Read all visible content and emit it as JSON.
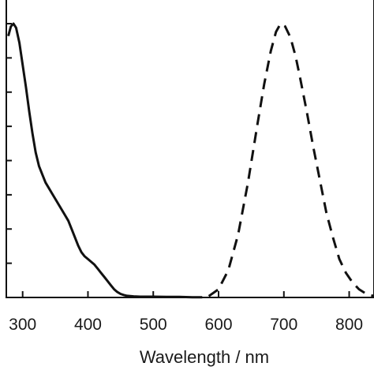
{
  "chart_data": {
    "type": "line",
    "title": "",
    "xlabel": "Wavelength / nm",
    "ylabel": "",
    "xlim": [
      275,
      838
    ],
    "ylim": [
      0,
      1
    ],
    "x_ticks": [
      300,
      400,
      500,
      600,
      700,
      800
    ],
    "x_tick_labels": [
      "300",
      "400",
      "500",
      "600",
      "700",
      "800"
    ],
    "y_ticks": [
      0,
      0.125,
      0.25,
      0.375,
      0.5,
      0.625,
      0.75,
      0.875,
      1.0
    ],
    "y_tick_labels_visible": false,
    "grid": false,
    "legend": "none",
    "series": [
      {
        "style": "solid",
        "color": "#111111",
        "x": [
          278,
          282,
          286,
          290,
          295,
          300,
          305,
          310,
          315,
          320,
          325,
          330,
          335,
          340,
          345,
          350,
          355,
          360,
          365,
          370,
          375,
          380,
          385,
          390,
          395,
          400,
          405,
          410,
          415,
          420,
          425,
          430,
          435,
          440,
          445,
          450,
          455,
          460,
          470,
          480,
          500,
          520,
          540,
          560,
          575
        ],
        "y": [
          0.955,
          0.99,
          1.0,
          0.985,
          0.93,
          0.85,
          0.77,
          0.68,
          0.6,
          0.53,
          0.48,
          0.45,
          0.42,
          0.4,
          0.38,
          0.36,
          0.34,
          0.32,
          0.3,
          0.28,
          0.25,
          0.22,
          0.19,
          0.165,
          0.15,
          0.14,
          0.13,
          0.12,
          0.105,
          0.09,
          0.075,
          0.06,
          0.045,
          0.03,
          0.02,
          0.013,
          0.009,
          0.006,
          0.004,
          0.003,
          0.003,
          0.002,
          0.002,
          0.001,
          0.001
        ]
      },
      {
        "style": "dashed",
        "color": "#111111",
        "x": [
          585,
          600,
          615,
          630,
          645,
          660,
          670,
          680,
          688,
          695,
          702,
          710,
          718,
          725,
          735,
          745,
          755,
          765,
          775,
          785,
          795,
          805,
          815,
          825,
          838
        ],
        "y": [
          0.005,
          0.03,
          0.1,
          0.23,
          0.42,
          0.64,
          0.78,
          0.9,
          0.97,
          1.0,
          0.99,
          0.95,
          0.88,
          0.8,
          0.68,
          0.55,
          0.43,
          0.31,
          0.22,
          0.14,
          0.09,
          0.055,
          0.03,
          0.015,
          0.005
        ]
      }
    ]
  }
}
